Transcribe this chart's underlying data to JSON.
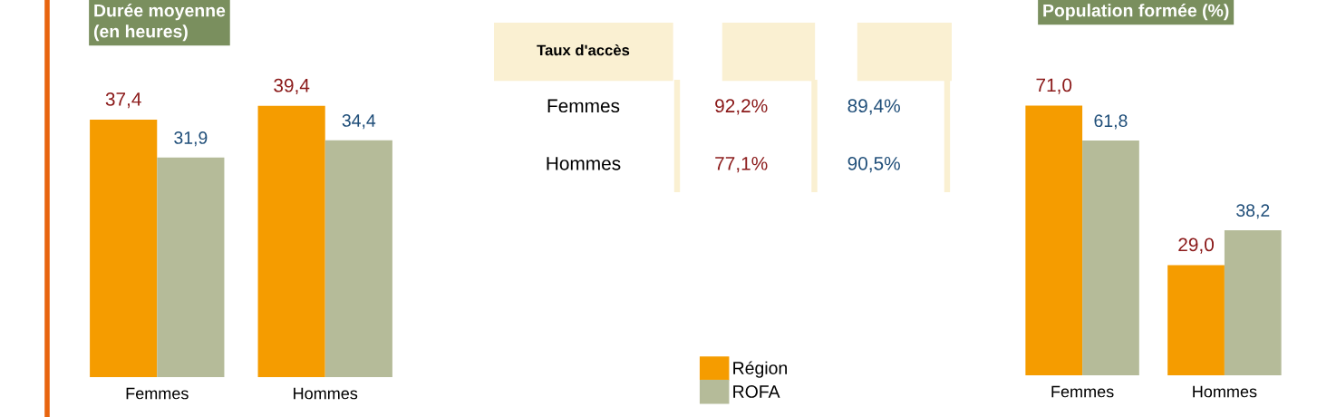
{
  "chart_data": [
    {
      "type": "bar",
      "title": "Durée moyenne\n(en heures)",
      "categories": [
        "Femmes",
        "Hommes"
      ],
      "series": [
        {
          "name": "Région",
          "color": "#f59c00",
          "values": [
            37.4,
            39.4
          ],
          "value_labels": [
            "37,4",
            "39,4"
          ]
        },
        {
          "name": "ROFA",
          "color": "#b5bb99",
          "values": [
            31.9,
            34.4
          ],
          "value_labels": [
            "31,9",
            "34,4"
          ]
        }
      ],
      "legend": "bottom"
    },
    {
      "type": "other",
      "title": "Taux d'accès",
      "categories": [
        "Femmes",
        "Hommes"
      ],
      "series": [
        {
          "color": "#8b1a1a",
          "values": [
            92.2,
            77.1
          ],
          "value_labels": [
            "92,2%",
            "77,1%"
          ]
        },
        {
          "color": "#1f4e79",
          "values": [
            89.4,
            90.5
          ],
          "value_labels": [
            "89,4%",
            "90,5%"
          ]
        }
      ]
    },
    {
      "type": "bar",
      "title": "Population formée (%)",
      "categories": [
        "Femmes",
        "Hommes"
      ],
      "series": [
        {
          "color": "#f59c00",
          "values": [
            71.0,
            29.0
          ],
          "value_labels": [
            "71,0",
            "29,0"
          ]
        },
        {
          "color": "#b5bb99",
          "values": [
            61.8,
            38.2
          ],
          "value_labels": [
            "61,8",
            "38,2"
          ]
        }
      ]
    }
  ]
}
